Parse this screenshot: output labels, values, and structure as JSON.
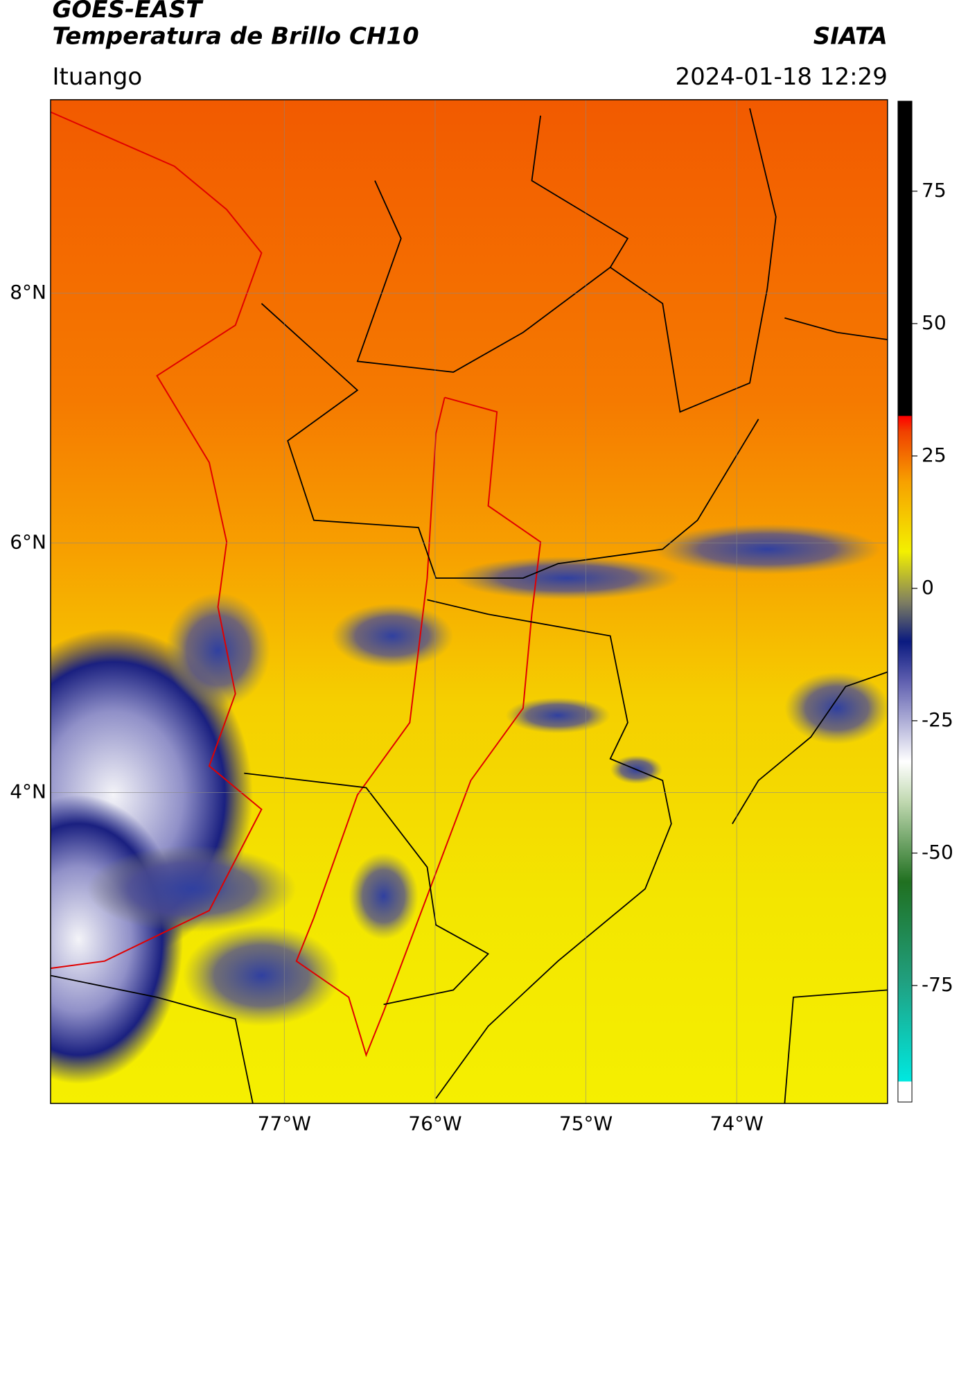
{
  "header": {
    "title": "GOES-EAST",
    "subtitle": "Temperatura de Brillo CH10",
    "brand": "SIATA",
    "location": "Ituango",
    "datetime": "2024-01-18 12:29"
  },
  "map": {
    "lonlim": [
      -78.55,
      -73.0
    ],
    "latlim": [
      1.51,
      9.55
    ],
    "lat_ticks": [
      {
        "value": 8,
        "label": "8°N"
      },
      {
        "value": 6,
        "label": "6°N"
      },
      {
        "value": 4,
        "label": "4°N"
      }
    ],
    "lon_ticks": [
      {
        "value": -77,
        "label": "77°W"
      },
      {
        "value": -76,
        "label": "76°W"
      },
      {
        "value": -75,
        "label": "75°W"
      },
      {
        "value": -74,
        "label": "74°W"
      }
    ]
  },
  "colorbar": {
    "lim": [
      -97,
      92
    ],
    "ticks": [
      75,
      50,
      25,
      0,
      -25,
      -50,
      -75
    ]
  }
}
